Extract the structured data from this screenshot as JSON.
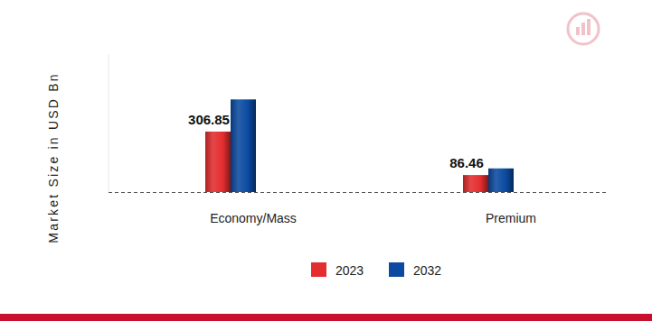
{
  "chart_data": {
    "type": "bar",
    "ylabel": "Market Size in USD Bn",
    "categories": [
      "Economy/Mass",
      "Premium"
    ],
    "series": [
      {
        "name": "2023",
        "color": "#e32d2f",
        "values": [
          306.85,
          86.46
        ],
        "data_labels": true
      },
      {
        "name": "2032",
        "color": "#0b4aa0",
        "values": [
          470,
          120
        ]
      }
    ],
    "ylim": [
      0,
      700
    ],
    "tick_labels": false,
    "legend": "bottom"
  }
}
